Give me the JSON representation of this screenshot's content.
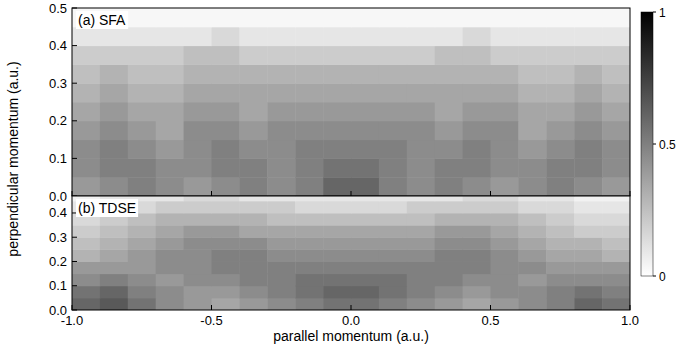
{
  "chart_data": [
    {
      "type": "heatmap",
      "title": "(a) SFA",
      "ylabel": "perpendicular momentum (a.u.)",
      "xlim": [
        -1,
        1
      ],
      "ylim": [
        0,
        0.5
      ],
      "xticks": [
        {
          "value": -1,
          "label": "-1.0"
        },
        {
          "value": -0.5,
          "label": "-0.5"
        },
        {
          "value": 0,
          "label": "0.0"
        },
        {
          "value": 0.5,
          "label": "0.5"
        },
        {
          "value": 1,
          "label": "1.0"
        }
      ],
      "yticks": [
        {
          "value": 0,
          "label": "0.0"
        },
        {
          "value": 0.1,
          "label": "0.1"
        },
        {
          "value": 0.2,
          "label": "0.2"
        },
        {
          "value": 0.3,
          "label": "0.3"
        },
        {
          "value": 0.4,
          "label": "0.4"
        },
        {
          "value": 0.5,
          "label": "0.5"
        }
      ],
      "tick_labels": "y",
      "colors": [
        "#ffffff",
        "#000000"
      ],
      "colorbar": {
        "range": [
          0,
          1
        ],
        "ticks": [
          0,
          0.5,
          1
        ]
      },
      "x_bins": [
        -1,
        -0.9,
        -0.8,
        -0.7,
        -0.6,
        -0.5,
        -0.4,
        -0.3,
        -0.2,
        -0.1,
        0,
        0.1,
        0.2,
        0.3,
        0.4,
        0.5,
        0.6,
        0.7,
        0.8,
        0.9,
        1
      ],
      "y_bins": [
        0,
        0.05,
        0.1,
        0.15,
        0.2,
        0.25,
        0.3,
        0.35,
        0.4,
        0.45,
        0.5
      ],
      "cells": [
        [
          0.4,
          0.45,
          0.5,
          0.45,
          0.4,
          0.45,
          0.5,
          0.45,
          0.5,
          0.6,
          0.6,
          0.5,
          0.45,
          0.5,
          0.45,
          0.4,
          0.45,
          0.5,
          0.45,
          0.4
        ],
        [
          0.45,
          0.5,
          0.5,
          0.45,
          0.45,
          0.5,
          0.5,
          0.45,
          0.5,
          0.55,
          0.55,
          0.5,
          0.45,
          0.5,
          0.5,
          0.45,
          0.45,
          0.5,
          0.5,
          0.45
        ],
        [
          0.45,
          0.5,
          0.45,
          0.4,
          0.45,
          0.5,
          0.45,
          0.45,
          0.5,
          0.5,
          0.5,
          0.5,
          0.45,
          0.45,
          0.5,
          0.45,
          0.4,
          0.45,
          0.5,
          0.45
        ],
        [
          0.4,
          0.45,
          0.4,
          0.35,
          0.45,
          0.45,
          0.4,
          0.45,
          0.45,
          0.45,
          0.45,
          0.45,
          0.45,
          0.4,
          0.45,
          0.45,
          0.35,
          0.4,
          0.45,
          0.4
        ],
        [
          0.35,
          0.4,
          0.35,
          0.35,
          0.4,
          0.4,
          0.35,
          0.4,
          0.4,
          0.4,
          0.4,
          0.4,
          0.4,
          0.35,
          0.4,
          0.4,
          0.35,
          0.35,
          0.4,
          0.35
        ],
        [
          0.3,
          0.35,
          0.3,
          0.3,
          0.35,
          0.35,
          0.35,
          0.35,
          0.35,
          0.35,
          0.35,
          0.35,
          0.35,
          0.35,
          0.35,
          0.35,
          0.3,
          0.3,
          0.35,
          0.3
        ],
        [
          0.25,
          0.3,
          0.25,
          0.25,
          0.3,
          0.3,
          0.3,
          0.3,
          0.3,
          0.3,
          0.3,
          0.3,
          0.3,
          0.3,
          0.3,
          0.3,
          0.25,
          0.25,
          0.3,
          0.25
        ],
        [
          0.2,
          0.2,
          0.2,
          0.2,
          0.25,
          0.25,
          0.2,
          0.2,
          0.2,
          0.2,
          0.2,
          0.2,
          0.2,
          0.25,
          0.25,
          0.2,
          0.2,
          0.2,
          0.2,
          0.2
        ],
        [
          0.1,
          0.1,
          0.1,
          0.1,
          0.1,
          0.15,
          0.1,
          0.1,
          0.1,
          0.1,
          0.1,
          0.1,
          0.1,
          0.1,
          0.15,
          0.1,
          0.1,
          0.1,
          0.1,
          0.1
        ],
        [
          0.03,
          0.03,
          0.03,
          0.03,
          0.03,
          0.03,
          0.03,
          0.03,
          0.03,
          0.03,
          0.03,
          0.03,
          0.03,
          0.03,
          0.03,
          0.03,
          0.03,
          0.03,
          0.03,
          0.03
        ]
      ]
    },
    {
      "type": "heatmap",
      "title": "(b) TDSE",
      "xlabel": "parallel momentum (a.u.)",
      "xlim": [
        -1,
        1
      ],
      "ylim": [
        0,
        0.47
      ],
      "xticks": [
        {
          "value": -1,
          "label": "-1.0"
        },
        {
          "value": -0.5,
          "label": "-0.5"
        },
        {
          "value": 0,
          "label": "0.0"
        },
        {
          "value": 0.5,
          "label": "0.5"
        },
        {
          "value": 1,
          "label": "1.0"
        }
      ],
      "yticks": [
        {
          "value": 0,
          "label": "0.0"
        },
        {
          "value": 0.1,
          "label": "0.1"
        },
        {
          "value": 0.2,
          "label": "0.2"
        },
        {
          "value": 0.3,
          "label": "0.3"
        },
        {
          "value": 0.4,
          "label": "0.4"
        }
      ],
      "colors": [
        "#ffffff",
        "#000000"
      ],
      "x_bins": [
        -1,
        -0.9,
        -0.8,
        -0.7,
        -0.6,
        -0.5,
        -0.4,
        -0.3,
        -0.2,
        -0.1,
        0,
        0.1,
        0.2,
        0.3,
        0.4,
        0.5,
        0.6,
        0.7,
        0.8,
        0.9,
        1
      ],
      "y_bins": [
        0,
        0.05,
        0.1,
        0.15,
        0.2,
        0.25,
        0.3,
        0.35,
        0.4,
        0.45,
        0.5
      ],
      "cells": [
        [
          0.6,
          0.65,
          0.55,
          0.45,
          0.4,
          0.35,
          0.4,
          0.45,
          0.5,
          0.55,
          0.55,
          0.5,
          0.45,
          0.4,
          0.35,
          0.4,
          0.45,
          0.5,
          0.6,
          0.55
        ],
        [
          0.55,
          0.6,
          0.5,
          0.45,
          0.4,
          0.4,
          0.45,
          0.5,
          0.55,
          0.6,
          0.6,
          0.55,
          0.5,
          0.45,
          0.4,
          0.45,
          0.45,
          0.5,
          0.55,
          0.5
        ],
        [
          0.45,
          0.5,
          0.45,
          0.4,
          0.45,
          0.45,
          0.5,
          0.5,
          0.55,
          0.55,
          0.55,
          0.55,
          0.5,
          0.5,
          0.45,
          0.45,
          0.4,
          0.45,
          0.45,
          0.45
        ],
        [
          0.4,
          0.4,
          0.4,
          0.45,
          0.45,
          0.5,
          0.5,
          0.5,
          0.5,
          0.5,
          0.5,
          0.5,
          0.5,
          0.5,
          0.5,
          0.45,
          0.45,
          0.4,
          0.4,
          0.4
        ],
        [
          0.3,
          0.35,
          0.4,
          0.45,
          0.45,
          0.5,
          0.5,
          0.45,
          0.45,
          0.45,
          0.45,
          0.45,
          0.45,
          0.5,
          0.5,
          0.45,
          0.4,
          0.35,
          0.35,
          0.3
        ],
        [
          0.25,
          0.3,
          0.35,
          0.4,
          0.45,
          0.45,
          0.45,
          0.4,
          0.4,
          0.4,
          0.4,
          0.4,
          0.4,
          0.45,
          0.45,
          0.4,
          0.35,
          0.3,
          0.3,
          0.25
        ],
        [
          0.2,
          0.25,
          0.3,
          0.35,
          0.4,
          0.4,
          0.35,
          0.35,
          0.35,
          0.35,
          0.35,
          0.35,
          0.35,
          0.4,
          0.4,
          0.35,
          0.3,
          0.25,
          0.2,
          0.2
        ],
        [
          0.15,
          0.2,
          0.25,
          0.3,
          0.3,
          0.3,
          0.3,
          0.25,
          0.25,
          0.25,
          0.25,
          0.25,
          0.25,
          0.3,
          0.3,
          0.3,
          0.25,
          0.2,
          0.15,
          0.15
        ],
        [
          0.1,
          0.15,
          0.15,
          0.2,
          0.2,
          0.2,
          0.2,
          0.2,
          0.15,
          0.15,
          0.15,
          0.15,
          0.2,
          0.2,
          0.2,
          0.2,
          0.15,
          0.15,
          0.1,
          0.1
        ],
        [
          0.05,
          0.1,
          0.1,
          0.1,
          0.15,
          0.15,
          0.1,
          0.1,
          0.1,
          0.1,
          0.1,
          0.1,
          0.1,
          0.1,
          0.15,
          0.15,
          0.1,
          0.1,
          0.05,
          0.05
        ]
      ]
    }
  ]
}
